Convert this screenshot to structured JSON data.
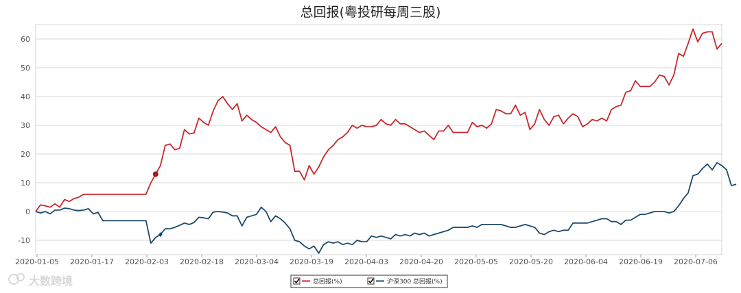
{
  "watermark": "大数跨境",
  "chart_data": {
    "type": "line",
    "title": "总回报(粤投研每周三股)",
    "xlabel": "",
    "ylabel": "",
    "ylim": [
      -15,
      65
    ],
    "yticks": [
      -10,
      0,
      10,
      20,
      30,
      40,
      50,
      60
    ],
    "x_ticks": [
      "2020-01-05",
      "2020-01-17",
      "2020-02-03",
      "2020-02-18",
      "2020-03-04",
      "2020-03-19",
      "2020-04-03",
      "2020-04-20",
      "2020-05-05",
      "2020-05-20",
      "2020-06-04",
      "2020-06-19",
      "2020-07-06"
    ],
    "grid": true,
    "legend_position": "bottom-center",
    "colors": {
      "series1": "#c8282d",
      "series2": "#1c4a6b"
    },
    "series": [
      {
        "name": "总回报(%)",
        "values": [
          0,
          2.3,
          2,
          1.5,
          2.7,
          1.5,
          4.2,
          3.5,
          4.5,
          5,
          6,
          6,
          6,
          6,
          6,
          6,
          6,
          6,
          6,
          6,
          6,
          6,
          6,
          6,
          10,
          13,
          16,
          23,
          23.5,
          21.5,
          22,
          28.5,
          27,
          27.3,
          32.5,
          31,
          30,
          35,
          38.5,
          40,
          37.5,
          35.5,
          37.5,
          31.5,
          33.5,
          32,
          31,
          29.5,
          28.5,
          27.5,
          29.5,
          26,
          24,
          23,
          14,
          14,
          11,
          16,
          13,
          15.5,
          19,
          21.5,
          23,
          25,
          26,
          27.5,
          30,
          29,
          30,
          29.5,
          29.5,
          30,
          32,
          30.5,
          30,
          32,
          30.5,
          30.5,
          29.5,
          28.5,
          27.5,
          28,
          26.5,
          25,
          28,
          28,
          30,
          27.5,
          27.5,
          27.5,
          27.5,
          31,
          29.5,
          30,
          29,
          30.5,
          35.5,
          35,
          34,
          34,
          37,
          33.5,
          34.5,
          28.5,
          30.5,
          35.5,
          32,
          30,
          33,
          33.5,
          30.5,
          32.5,
          34,
          33,
          29.5,
          30.5,
          32,
          31.5,
          32.5,
          31.5,
          35.5,
          36.5,
          37,
          41.5,
          42,
          45.5,
          43.5,
          43.5,
          43.5,
          45,
          47.5,
          47,
          44,
          47.5,
          55,
          54,
          58.5,
          63.5,
          59,
          62,
          62.5,
          62.5,
          56.5,
          58.5
        ]
      },
      {
        "name": "沪深300 总回报(%)",
        "values": [
          0,
          -0.5,
          0,
          -0.8,
          0.5,
          0.5,
          1.2,
          1,
          0.5,
          0.3,
          0.5,
          1,
          -0.8,
          -0.3,
          -3.2,
          -3.2,
          -3.2,
          -3.2,
          -3.2,
          -3.2,
          -3.2,
          -3.2,
          -3.2,
          -3.2,
          -11,
          -9,
          -8,
          -6,
          -6,
          -5.5,
          -4.8,
          -4,
          -4.5,
          -3.8,
          -2,
          -2.2,
          -2.5,
          -0.2,
          0,
          -0.2,
          -0.5,
          -1.5,
          -1.5,
          -5,
          -2,
          -1.5,
          -1,
          1.5,
          0,
          -3.5,
          -1.5,
          -2.5,
          -4,
          -6,
          -10,
          -10.5,
          -12,
          -13,
          -12,
          -14.5,
          -11.5,
          -10.5,
          -11,
          -10.5,
          -11.5,
          -11,
          -11.5,
          -10,
          -10.5,
          -10.5,
          -8.5,
          -9,
          -8.5,
          -9,
          -9.5,
          -8,
          -8.5,
          -8,
          -8.5,
          -7.5,
          -8,
          -7.5,
          -8.5,
          -8,
          -7.5,
          -7,
          -6.5,
          -5.5,
          -5.5,
          -5.5,
          -5.5,
          -5,
          -5.5,
          -4.5,
          -4.5,
          -4.5,
          -4.5,
          -4.5,
          -5,
          -5.5,
          -5.5,
          -5,
          -4.5,
          -5,
          -5.5,
          -7.5,
          -8,
          -7,
          -6.5,
          -7,
          -6.5,
          -6.5,
          -4,
          -4,
          -4,
          -4,
          -3.5,
          -3,
          -2.5,
          -2.5,
          -3.5,
          -3.5,
          -4.5,
          -3,
          -3,
          -2,
          -1,
          -1,
          -0.5,
          0,
          0,
          0,
          -0.5,
          0,
          2,
          4.5,
          6.5,
          12.5,
          13,
          15,
          16.5,
          14.5,
          17,
          16,
          14.5,
          9,
          9.5
        ]
      }
    ],
    "markers": [
      {
        "series": 0,
        "index": 25
      },
      {
        "series": 1,
        "index": 26
      }
    ]
  }
}
